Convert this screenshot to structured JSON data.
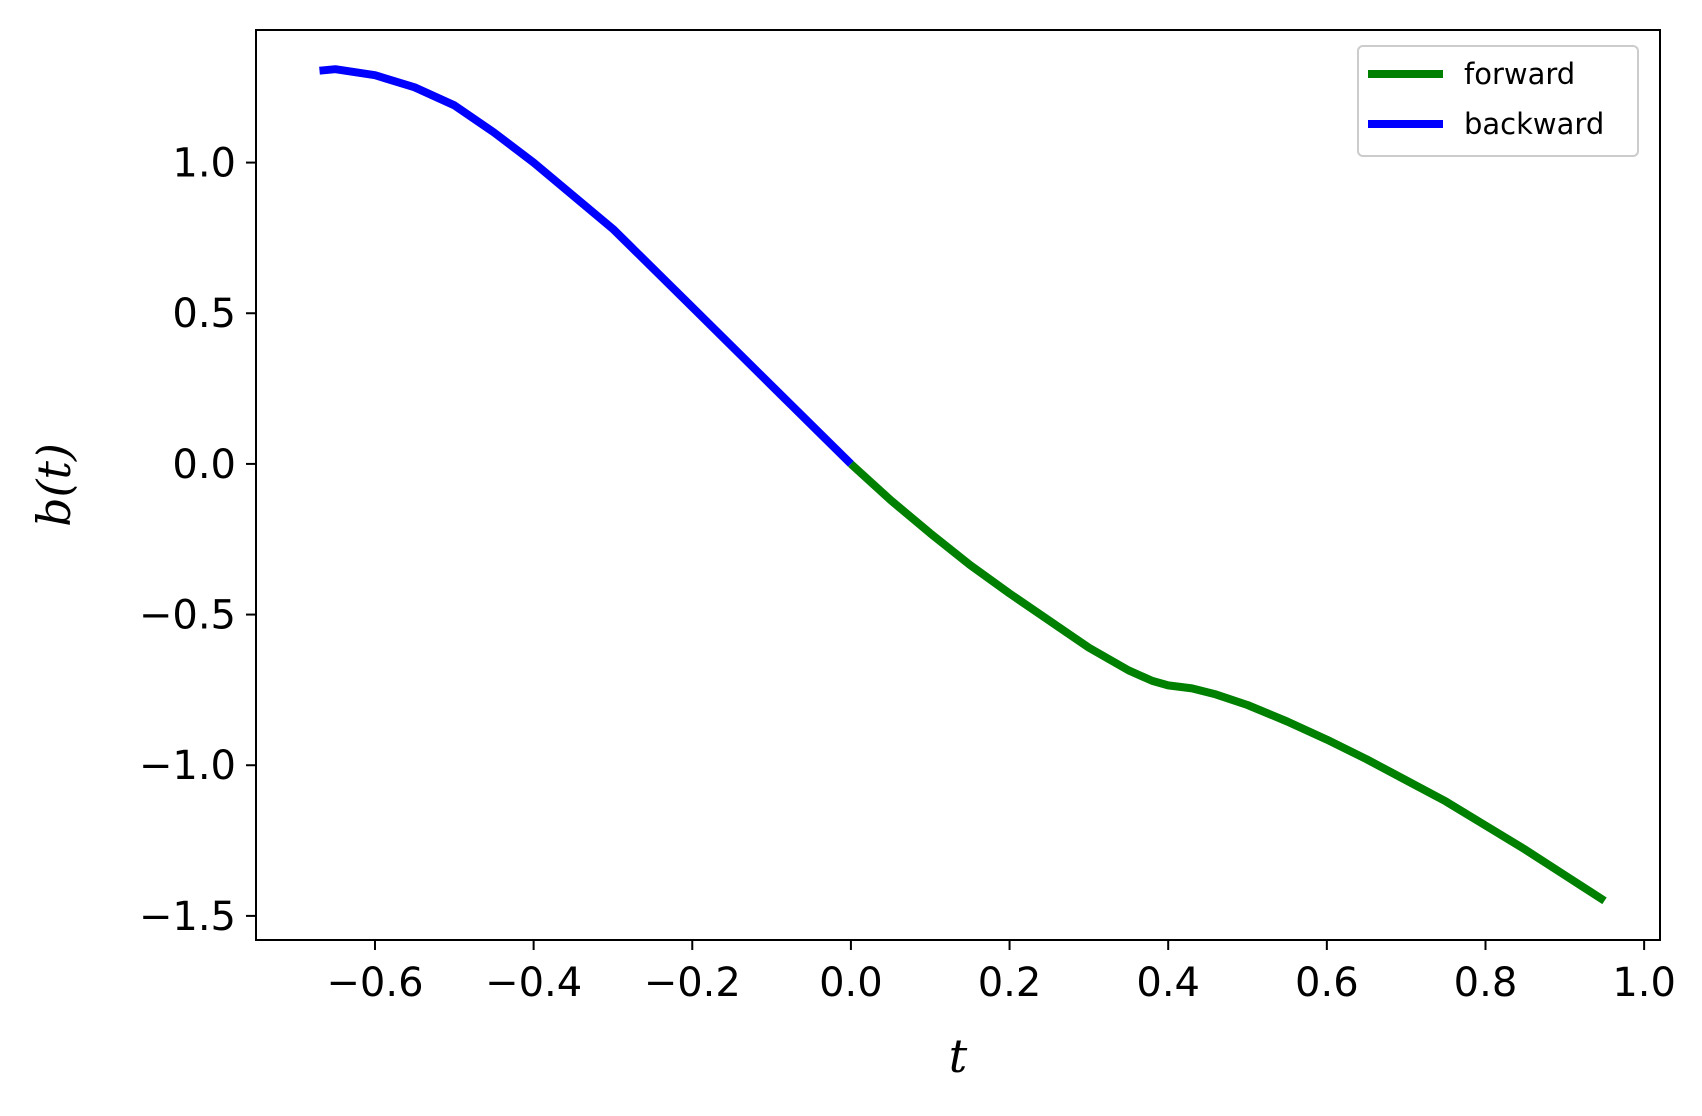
{
  "chart_data": {
    "type": "line",
    "title": "",
    "xlabel": "t",
    "ylabel": "b(t)",
    "xlim": [
      -0.75,
      1.02
    ],
    "ylim": [
      -1.58,
      1.44
    ],
    "xticks": [
      -0.6,
      -0.4,
      -0.2,
      0.0,
      0.2,
      0.4,
      0.6,
      0.8,
      1.0
    ],
    "xtick_labels": [
      "−0.6",
      "−0.4",
      "−0.2",
      "0.0",
      "0.2",
      "0.4",
      "0.6",
      "0.8",
      "1.0"
    ],
    "yticks": [
      1.0,
      0.5,
      0.0,
      -0.5,
      -1.0,
      -1.5
    ],
    "ytick_labels": [
      "1.0",
      "0.5",
      "0.0",
      "−0.5",
      "−1.0",
      "−1.5"
    ],
    "grid": false,
    "legend_position": "top-right",
    "series": [
      {
        "name": "forward",
        "color": "#008000",
        "x": [
          0.0,
          0.05,
          0.1,
          0.15,
          0.2,
          0.25,
          0.3,
          0.35,
          0.38,
          0.4,
          0.43,
          0.46,
          0.5,
          0.55,
          0.6,
          0.65,
          0.7,
          0.75,
          0.8,
          0.85,
          0.9,
          0.95
        ],
        "y": [
          0.0,
          -0.12,
          -0.23,
          -0.335,
          -0.43,
          -0.52,
          -0.61,
          -0.685,
          -0.72,
          -0.735,
          -0.745,
          -0.765,
          -0.8,
          -0.855,
          -0.915,
          -0.98,
          -1.05,
          -1.12,
          -1.2,
          -1.28,
          -1.365,
          -1.45
        ]
      },
      {
        "name": "backward",
        "color": "#0000ff",
        "x": [
          0.0,
          -0.1,
          -0.2,
          -0.3,
          -0.4,
          -0.45,
          -0.5,
          -0.55,
          -0.6,
          -0.65,
          -0.67
        ],
        "y": [
          0.0,
          0.26,
          0.52,
          0.78,
          1.0,
          1.1,
          1.19,
          1.25,
          1.29,
          1.31,
          1.305
        ]
      }
    ]
  }
}
